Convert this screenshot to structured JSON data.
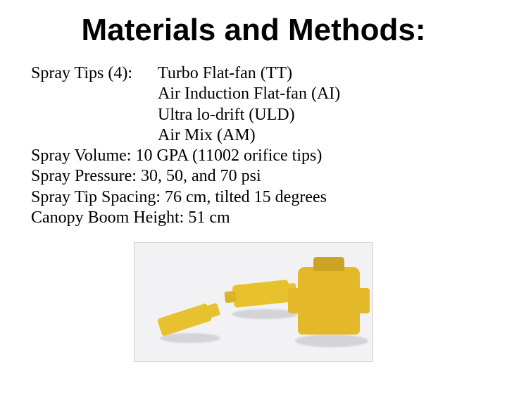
{
  "title": "Materials and Methods:",
  "tips_label": "Spray Tips (4):",
  "tips": [
    "Turbo Flat-fan (TT)",
    "Air Induction Flat-fan (AI)",
    "Ultra lo-drift (ULD)",
    "Air Mix (AM)"
  ],
  "lines": [
    "Spray Volume: 10 GPA (11002 orifice tips)",
    "Spray Pressure: 30, 50, and 70 psi",
    "Spray Tip Spacing: 76 cm, tilted 15 degrees",
    "Canopy Boom Height: 51 cm"
  ],
  "photo": {
    "alt": "three yellow spray nozzle tips on white background",
    "background": "#f2f2f4",
    "nozzle_color": "#e7c22e"
  }
}
